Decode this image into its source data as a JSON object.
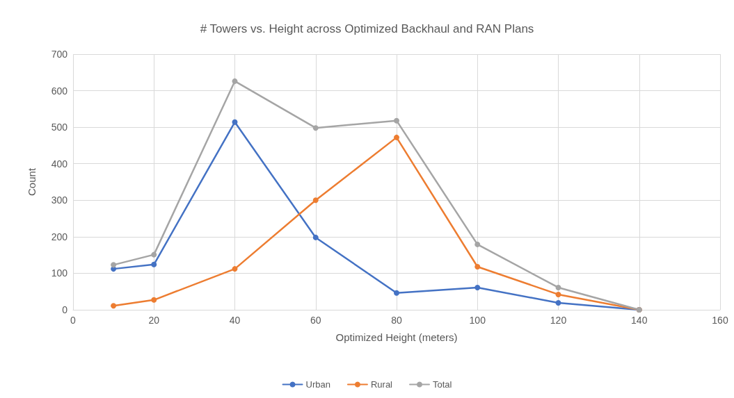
{
  "chart_data": {
    "type": "line",
    "title": "# Towers vs. Height across Optimized Backhaul and RAN Plans",
    "xlabel": "Optimized Height (meters)",
    "ylabel": "Count",
    "x": [
      10,
      20,
      40,
      60,
      80,
      100,
      120,
      140
    ],
    "series": [
      {
        "name": "Urban",
        "color": "#4472c4",
        "values": [
          112,
          124,
          514,
          198,
          46,
          61,
          19,
          0
        ]
      },
      {
        "name": "Rural",
        "color": "#ed7d31",
        "values": [
          11,
          27,
          112,
          300,
          472,
          118,
          42,
          0
        ]
      },
      {
        "name": "Total",
        "color": "#a5a5a5",
        "values": [
          123,
          151,
          626,
          498,
          518,
          179,
          61,
          0
        ]
      }
    ],
    "xlim": [
      0,
      160
    ],
    "xticks": [
      0,
      20,
      40,
      60,
      80,
      100,
      120,
      140,
      160
    ],
    "ylim": [
      0,
      700
    ],
    "yticks": [
      0,
      100,
      200,
      300,
      400,
      500,
      600,
      700
    ],
    "grid": true,
    "legend": "bottom",
    "marker": "circle",
    "line_style": "solid"
  }
}
